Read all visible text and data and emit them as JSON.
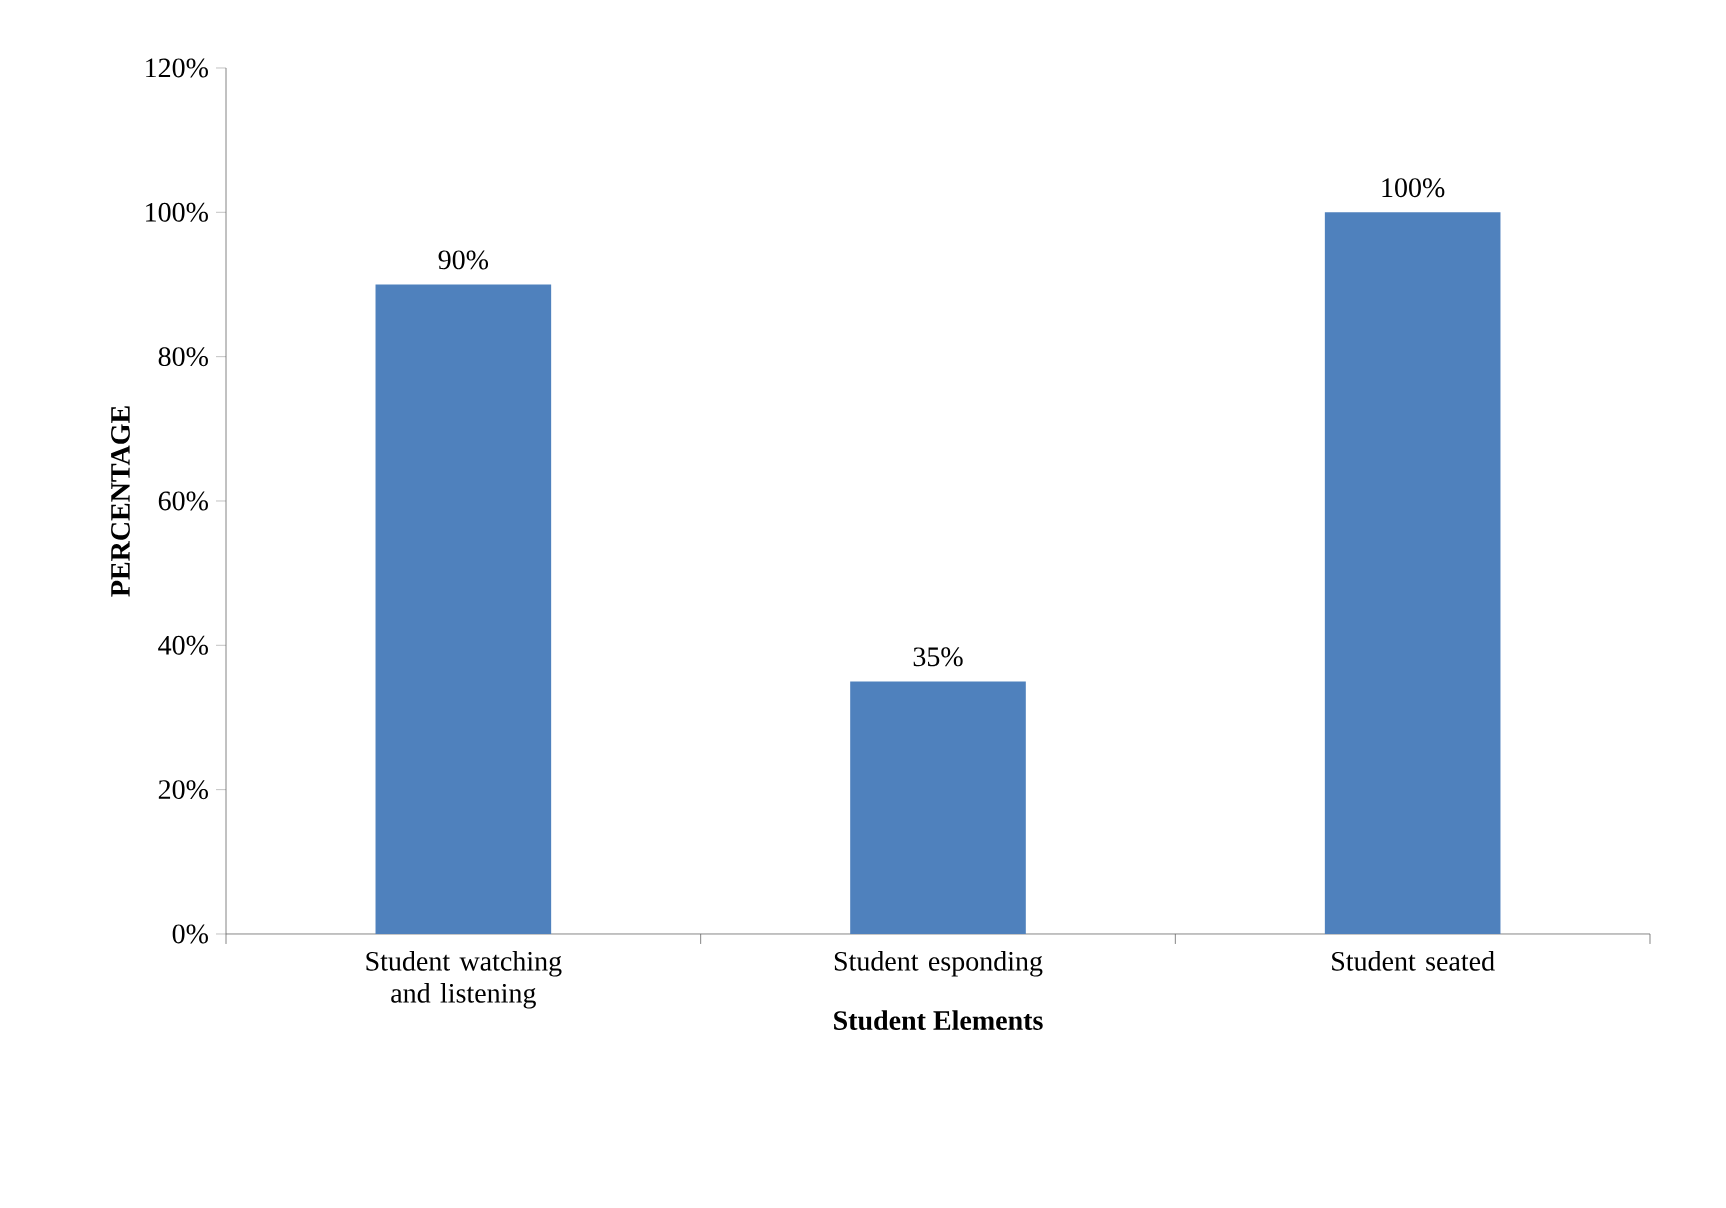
{
  "chart_data": {
    "type": "bar",
    "xlabel": "Student Elements",
    "ylabel": "PERCENTAGE",
    "categories": [
      "Student watching and listening",
      "Student esponding",
      "Student seated"
    ],
    "values": [
      90,
      35,
      100
    ],
    "color": "#4f81bd",
    "value_labels": [
      "90%",
      "35%",
      "100%"
    ],
    "ylim": [
      0,
      120
    ],
    "yticks": [
      {
        "value": 0,
        "label": "0%"
      },
      {
        "value": 20,
        "label": "20%"
      },
      {
        "value": 40,
        "label": "40%"
      },
      {
        "value": 60,
        "label": "60%"
      },
      {
        "value": 80,
        "label": "80%"
      },
      {
        "value": 100,
        "label": "100%"
      },
      {
        "value": 120,
        "label": "120%"
      }
    ],
    "grid": false
  }
}
